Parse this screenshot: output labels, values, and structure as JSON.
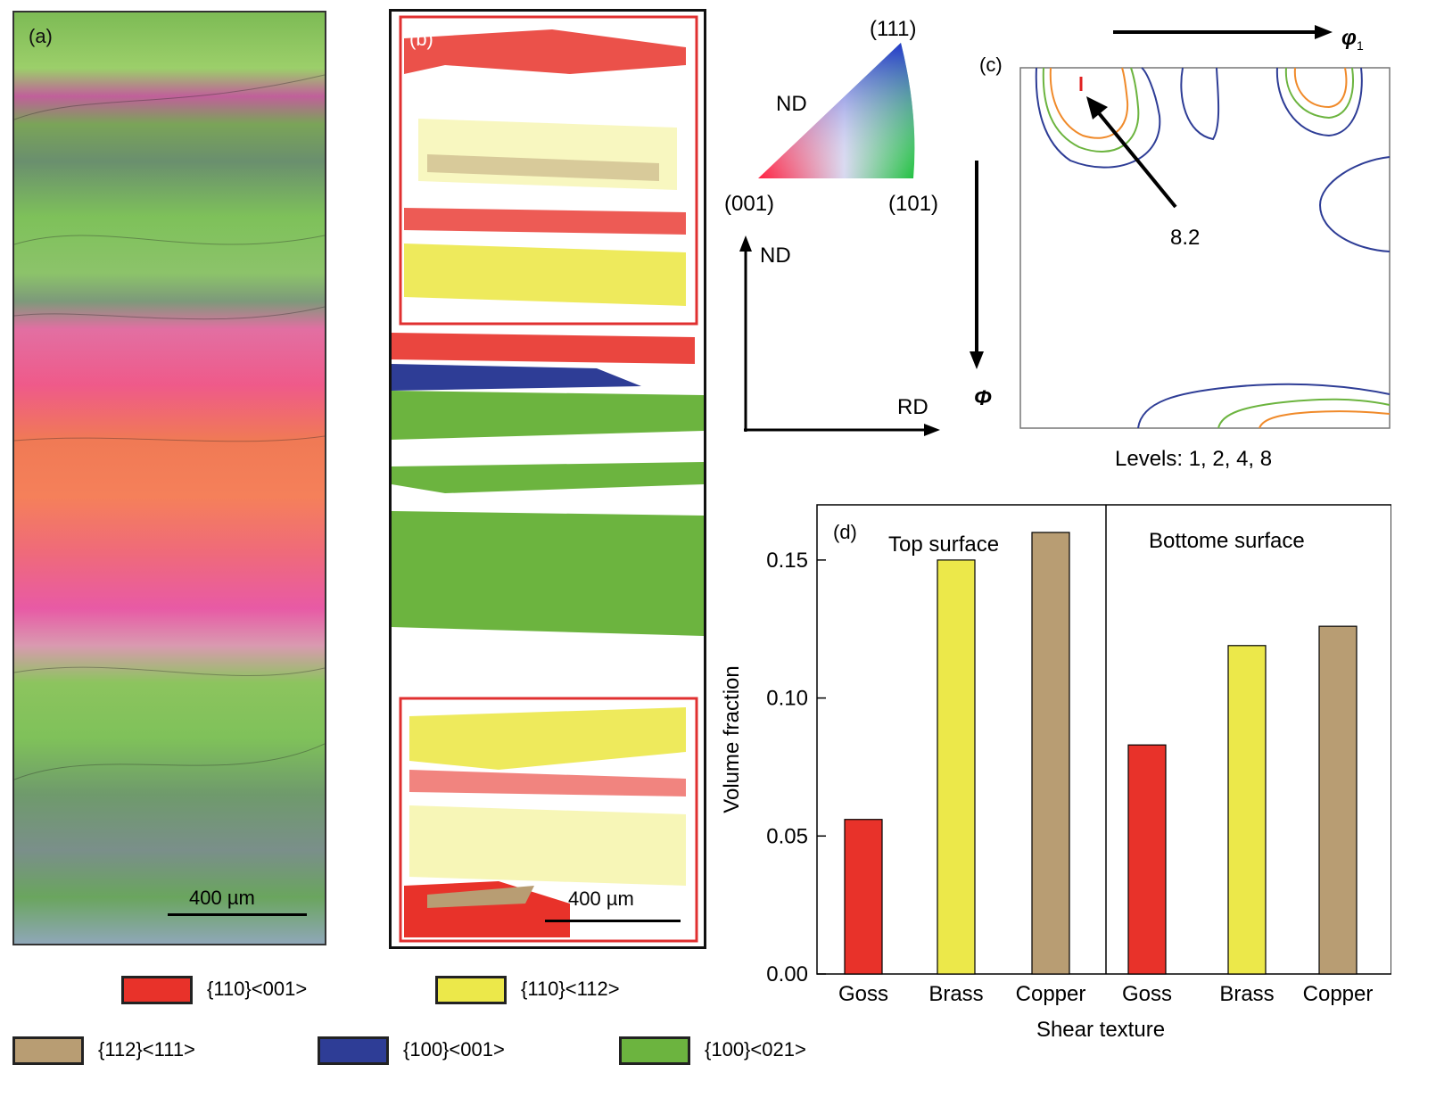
{
  "panel_a": {
    "label": "(a)",
    "scale_bar": "400 µm"
  },
  "panel_b": {
    "label": "(b)",
    "scale_bar": "400 µm"
  },
  "ipf_key": {
    "label_111": "(111)",
    "label_001": "(001)",
    "label_101": "(101)",
    "label_nd": "ND"
  },
  "axes_sketch": {
    "nd": "ND",
    "rd": "RD"
  },
  "panel_c": {
    "label": "(c)",
    "phi1": "φ",
    "phi1_sub": "1",
    "phi": "Φ",
    "max_value": "8.2",
    "levels": "Levels: 1, 2, 4, 8"
  },
  "legend": [
    {
      "label": "{110}<001>",
      "color": "#e8322a"
    },
    {
      "label": "{110}<112>",
      "color": "#ece84a"
    },
    {
      "label": "{112}<111>",
      "color": "#b89d73"
    },
    {
      "label": "{100}<001>",
      "color": "#2e3d96"
    },
    {
      "label": "{100}<021>",
      "color": "#6cb43f"
    }
  ],
  "chart_data": {
    "type": "bar",
    "panel_label": "(d)",
    "groups": [
      "Top surface",
      "Bottome surface"
    ],
    "categories": [
      "Goss",
      "Brass",
      "Copper",
      "Goss",
      "Brass",
      "Copper"
    ],
    "values": [
      0.056,
      0.15,
      0.16,
      0.083,
      0.119,
      0.126
    ],
    "colors": [
      "#e8322a",
      "#ece84a",
      "#b89d73",
      "#e8322a",
      "#ece84a",
      "#b89d73"
    ],
    "xlabel": "Shear texture",
    "ylabel": "Volume fraction",
    "ylim": [
      0,
      0.17
    ],
    "yticks": [
      "0.00",
      "0.05",
      "0.10",
      "0.15"
    ],
    "ytick_values": [
      0,
      0.05,
      0.1,
      0.15
    ]
  }
}
